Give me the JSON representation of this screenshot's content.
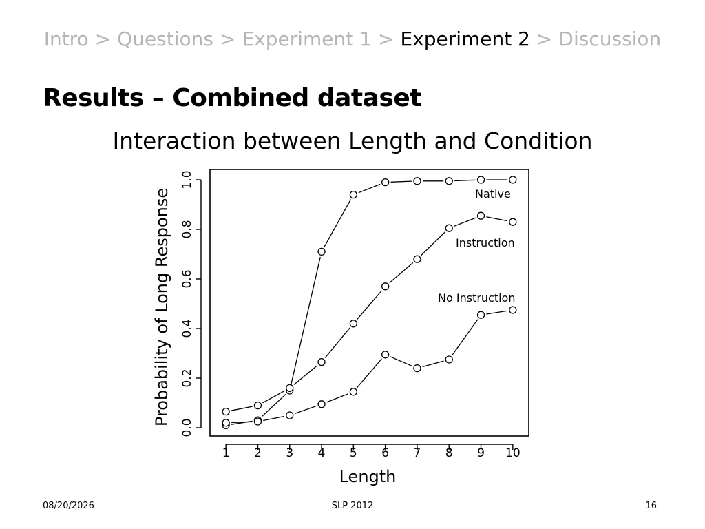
{
  "breadcrumb": {
    "items": [
      {
        "label": "Intro",
        "active": false
      },
      {
        "label": "Questions",
        "active": false
      },
      {
        "label": "Experiment 1",
        "active": false
      },
      {
        "label": "Experiment 2",
        "active": true
      },
      {
        "label": "Discussion",
        "active": false
      }
    ],
    "separator": ">"
  },
  "slide": {
    "title": "Results – Combined dataset",
    "subtitle": "Interaction between Length and Condition"
  },
  "footer": {
    "date": "08/20/2026",
    "center": "SLP 2012",
    "page": "16"
  },
  "chart_data": {
    "type": "line",
    "xlabel": "Length",
    "ylabel": "Probability of Long Response",
    "x": [
      1,
      2,
      3,
      4,
      5,
      6,
      7,
      8,
      9,
      10
    ],
    "xlim": [
      0.5,
      10.5
    ],
    "ylim": [
      0,
      1
    ],
    "yticks": [
      0.0,
      0.2,
      0.4,
      0.6,
      0.8,
      1.0
    ],
    "ytick_labels": [
      "0.0",
      "0.2",
      "0.4",
      "0.6",
      "0.8",
      "1.0"
    ],
    "xtick_labels": [
      "1",
      "2",
      "3",
      "4",
      "5",
      "6",
      "7",
      "8",
      "9",
      "10"
    ],
    "grid": false,
    "marker": "open-circle",
    "line_color": "#000000",
    "series": [
      {
        "name": "Native",
        "values": [
          0.01,
          0.03,
          0.15,
          0.71,
          0.94,
          0.99,
          0.995,
          0.995,
          1.0,
          1.0
        ]
      },
      {
        "name": "Instruction",
        "values": [
          0.065,
          0.09,
          0.16,
          0.265,
          0.42,
          0.57,
          0.68,
          0.805,
          0.855,
          0.83
        ]
      },
      {
        "name": "No Instruction",
        "values": [
          0.02,
          0.025,
          0.05,
          0.095,
          0.145,
          0.295,
          0.24,
          0.275,
          0.455,
          0.475
        ]
      }
    ]
  }
}
